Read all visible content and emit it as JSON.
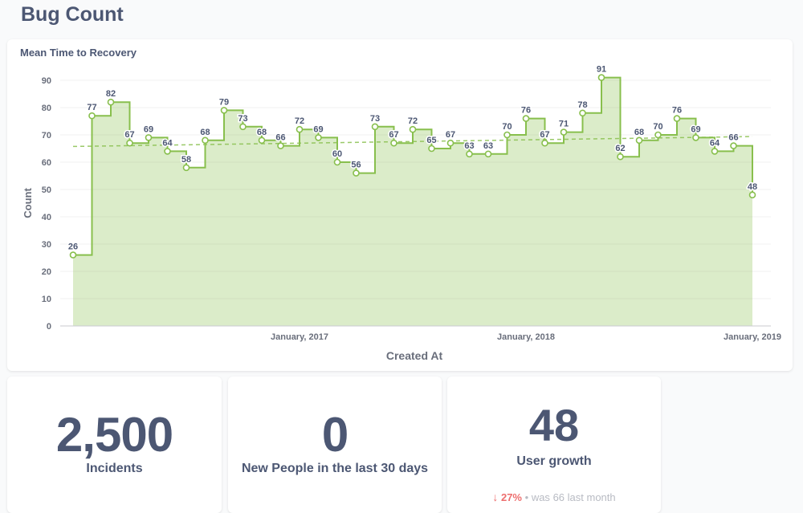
{
  "page": {
    "title": "Bug Count"
  },
  "chart_card": {
    "title": "Mean Time to Recovery"
  },
  "chart_data": {
    "type": "line",
    "subtype": "step-area",
    "xlabel": "Created At",
    "ylabel": "Count",
    "ylim": [
      0,
      90
    ],
    "yticks": [
      0,
      10,
      20,
      30,
      40,
      50,
      60,
      70,
      80,
      90
    ],
    "x_tick_labels": [
      {
        "label": "January, 2017",
        "month_index": 12
      },
      {
        "label": "January, 2018",
        "month_index": 24
      },
      {
        "label": "January, 2019",
        "month_index": 36
      }
    ],
    "x_start": "January, 2016",
    "grid": true,
    "trendline": true,
    "color": "#88bf4d",
    "series": [
      {
        "values": [
          26,
          77,
          82,
          67,
          69,
          64,
          58,
          68,
          79,
          73,
          68,
          66,
          72,
          69,
          60,
          56,
          73,
          67,
          72,
          65,
          67,
          63,
          63,
          70,
          76,
          67,
          71,
          78,
          91,
          62,
          68,
          70,
          76,
          69,
          64,
          66,
          48
        ]
      }
    ]
  },
  "stats": [
    {
      "value": "2,500",
      "label": "Incidents"
    },
    {
      "value": "0",
      "label": "New People in the last 30 days"
    },
    {
      "value": "48",
      "label": "User growth",
      "comparison": {
        "arrow": "↓",
        "change": "27%",
        "separator": "•",
        "was": "was",
        "prev_value": "66",
        "period": "last month"
      }
    }
  ]
}
